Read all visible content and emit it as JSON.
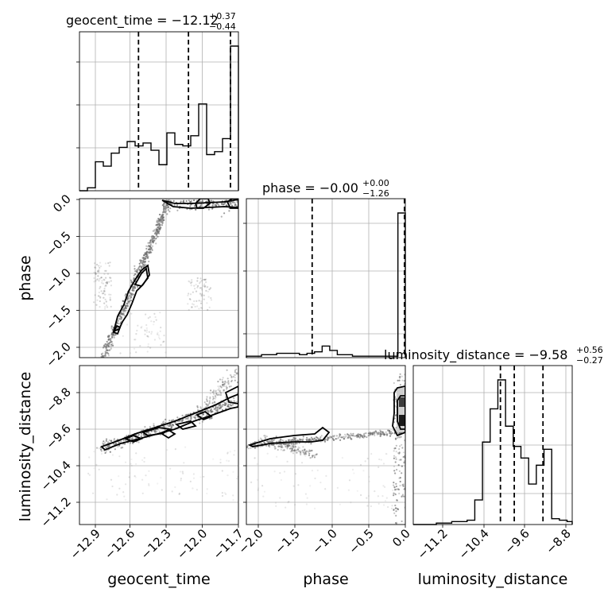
{
  "chart_data": {
    "type": "corner",
    "parameters": [
      {
        "name": "geocent_time",
        "label": "geocent_time",
        "range": [
          -13.08,
          -11.68
        ],
        "ticks": [
          -12.9,
          -12.6,
          -12.3,
          -12.0,
          -11.7
        ],
        "tick_labels": [
          "−12.9",
          "−12.6",
          "−12.3",
          "−12.0",
          "−11.7"
        ],
        "title_main": "geocent_time = −12.12",
        "title_upper": "+0.37",
        "title_lower": "−0.44",
        "quantiles": [
          -12.56,
          -12.12,
          -11.75
        ]
      },
      {
        "name": "phase",
        "label": "phase",
        "range": [
          -2.15,
          0.0
        ],
        "ticks": [
          -2.0,
          -1.5,
          -1.0,
          -0.5,
          0.0
        ],
        "tick_labels": [
          "−2.0",
          "−1.5",
          "−1.0",
          "−0.5",
          "0.0"
        ],
        "title_main": "phase = −0.00",
        "title_upper": "+0.00",
        "title_lower": "−1.26",
        "quantiles": [
          -1.26,
          -0.003,
          0.0
        ]
      },
      {
        "name": "luminosity_distance",
        "label": "luminosity_distance",
        "range": [
          -11.55,
          -8.45
        ],
        "ticks": [
          -11.2,
          -10.4,
          -9.6,
          -8.8
        ],
        "tick_labels": [
          "−11.2",
          "−10.4",
          "−9.6",
          "−8.8"
        ],
        "title_main": "luminosity_distance = −9.58",
        "title_upper": "+0.56",
        "title_lower": "−0.27",
        "quantiles": [
          -9.85,
          -9.58,
          -9.02
        ]
      }
    ],
    "histograms": [
      {
        "parameter": "geocent_time",
        "bin_edges": [
          -13.08,
          -13.01,
          -12.94,
          -12.87,
          -12.8,
          -12.73,
          -12.66,
          -12.59,
          -12.52,
          -12.45,
          -12.38,
          -12.31,
          -12.24,
          -12.17,
          -12.1,
          -12.03,
          -11.96,
          -11.89,
          -11.82,
          -11.75,
          -11.68
        ],
        "counts": [
          0,
          0.02,
          0.2,
          0.17,
          0.26,
          0.3,
          0.34,
          0.31,
          0.33,
          0.28,
          0.18,
          0.4,
          0.32,
          0.31,
          0.38,
          0.6,
          0.25,
          0.27,
          0.36,
          1.0
        ]
      },
      {
        "parameter": "phase",
        "bin_edges": [
          -2.15,
          -2.0475,
          -1.945,
          -1.8425,
          -1.74,
          -1.6375,
          -1.535,
          -1.4325,
          -1.33,
          -1.2275,
          -1.125,
          -1.0225,
          -0.92,
          -0.8175,
          -0.715,
          -0.6125,
          -0.51,
          -0.4075,
          -0.305,
          -0.2025,
          -0.1,
          0.0
        ],
        "counts": [
          0.01,
          0.01,
          0.02,
          0.02,
          0.03,
          0.03,
          0.03,
          0.02,
          0.03,
          0.04,
          0.08,
          0.05,
          0.02,
          0.02,
          0.01,
          0.01,
          0.01,
          0.01,
          0.01,
          0.01,
          1.0
        ]
      },
      {
        "parameter": "luminosity_distance",
        "bin_edges": [
          -11.55,
          -11.4,
          -11.25,
          -11.1,
          -10.95,
          -10.8,
          -10.65,
          -10.5,
          -10.35,
          -10.2,
          -10.05,
          -9.9,
          -9.75,
          -9.6,
          -9.45,
          -9.3,
          -9.15,
          -9.0,
          -8.85,
          -8.7,
          -8.55,
          -8.45
        ],
        "counts": [
          0,
          0,
          0,
          0.01,
          0.01,
          0.02,
          0.02,
          0.03,
          0.17,
          0.57,
          0.8,
          1.0,
          0.68,
          0.54,
          0.46,
          0.28,
          0.41,
          0.52,
          0.04,
          0.03,
          0.02
        ]
      }
    ]
  }
}
